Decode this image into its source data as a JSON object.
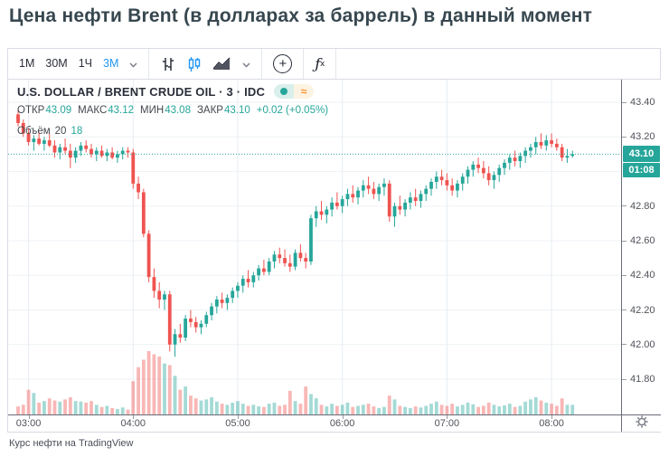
{
  "page": {
    "title": "Цена нефти Brent (в долларах за баррель) в данный момент",
    "footer": "Курс нефти на TradingView"
  },
  "toolbar": {
    "intervals": [
      {
        "label": "1М"
      },
      {
        "label": "30М"
      },
      {
        "label": "1Ч"
      },
      {
        "label": "3М"
      }
    ],
    "active_interval": "3М",
    "icons": [
      "chevron-down",
      "bars-style",
      "candles-style",
      "area-style",
      "chevron-down",
      "compare-plus",
      "indicators-fx"
    ]
  },
  "legend": {
    "symbol_title": "U.S. DOLLAR / BRENT CRUDE OIL · 3 · IDC",
    "ohlc": {
      "open_label": "ОТКР",
      "open": "43.09",
      "high_label": "МАКС",
      "high": "43.12",
      "low_label": "МИН",
      "low": "43.08",
      "close_label": "ЗАКР",
      "close": "43.10",
      "change": "+0.02 (+0.05%)"
    },
    "volume_label": "Объём",
    "volume_ma_length": "20",
    "volume_value": "18"
  },
  "price_scale": {
    "last_price": "43.10",
    "countdown": "01:08",
    "labels": [
      {
        "text": "43.40",
        "price": 43.4
      },
      {
        "text": "43.20",
        "price": 43.2
      },
      {
        "text": "42.80",
        "price": 42.8
      },
      {
        "text": "42.60",
        "price": 42.6
      },
      {
        "text": "42.40",
        "price": 42.4
      },
      {
        "text": "42.20",
        "price": 42.2
      },
      {
        "text": "42.00",
        "price": 42.0
      },
      {
        "text": "41.80",
        "price": 41.8
      }
    ]
  },
  "time_scale": {
    "labels": [
      {
        "text": "03:00",
        "index": 2
      },
      {
        "text": "04:00",
        "index": 22
      },
      {
        "text": "05:00",
        "index": 42
      },
      {
        "text": "06:00",
        "index": 62
      },
      {
        "text": "07:00",
        "index": 82
      },
      {
        "text": "08:00",
        "index": 102
      }
    ]
  },
  "colors": {
    "up": "#26a69a",
    "down": "#ef5350",
    "accent_blue": "#2196f3",
    "badge": "#26a69a",
    "grid_h": "#eef2f6",
    "grid_v": "#e6edf3",
    "axis_border": "#6a6d78",
    "delayed_orange": "#ff9332"
  },
  "chart_data": {
    "type": "candlestick",
    "title": "U.S. DOLLAR / BRENT CRUDE OIL",
    "exchange": "IDC",
    "interval_minutes": 3,
    "unit": "USD per barrel",
    "start_time": "02:54",
    "last_price": 43.1,
    "price_axis_gridlines": [
      43.4,
      43.2,
      43.0,
      42.8,
      42.6,
      42.4,
      42.2,
      42.0,
      41.8
    ],
    "visible_price_range": [
      41.6,
      43.53
    ],
    "columns": [
      "open",
      "high",
      "low",
      "close",
      "volume"
    ],
    "candles": [
      [
        43.33,
        43.36,
        43.26,
        43.28,
        15
      ],
      [
        43.28,
        43.3,
        43.2,
        43.22,
        18
      ],
      [
        43.22,
        43.25,
        43.15,
        43.17,
        46
      ],
      [
        43.17,
        43.21,
        43.12,
        43.19,
        40
      ],
      [
        43.19,
        43.23,
        43.15,
        43.16,
        22
      ],
      [
        43.16,
        43.2,
        43.12,
        43.18,
        25
      ],
      [
        43.18,
        43.22,
        43.14,
        43.15,
        30
      ],
      [
        43.15,
        43.18,
        43.08,
        43.11,
        26
      ],
      [
        43.11,
        43.16,
        43.07,
        43.14,
        24
      ],
      [
        43.14,
        43.19,
        43.1,
        43.12,
        28
      ],
      [
        43.12,
        43.16,
        43.02,
        43.08,
        32
      ],
      [
        43.08,
        43.14,
        43.05,
        43.12,
        25
      ],
      [
        43.12,
        43.17,
        43.09,
        43.15,
        24
      ],
      [
        43.15,
        43.18,
        43.11,
        43.13,
        22
      ],
      [
        43.13,
        43.16,
        43.08,
        43.1,
        25
      ],
      [
        43.1,
        43.14,
        43.06,
        43.12,
        18
      ],
      [
        43.12,
        43.15,
        43.08,
        43.09,
        14
      ],
      [
        43.09,
        43.13,
        43.06,
        43.11,
        16
      ],
      [
        43.11,
        43.14,
        43.07,
        43.08,
        12
      ],
      [
        43.08,
        43.12,
        43.05,
        43.1,
        10
      ],
      [
        43.1,
        43.14,
        43.07,
        43.12,
        13
      ],
      [
        43.12,
        43.14,
        43.08,
        43.11,
        9
      ],
      [
        43.11,
        43.13,
        42.9,
        42.93,
        62
      ],
      [
        42.93,
        42.97,
        42.84,
        42.88,
        88
      ],
      [
        42.88,
        42.9,
        42.62,
        42.64,
        102
      ],
      [
        42.64,
        42.66,
        42.36,
        42.39,
        118
      ],
      [
        42.39,
        42.44,
        42.27,
        42.31,
        112
      ],
      [
        42.31,
        42.36,
        42.21,
        42.26,
        108
      ],
      [
        42.26,
        42.31,
        42.2,
        42.29,
        95
      ],
      [
        42.29,
        42.31,
        41.96,
        42.0,
        92
      ],
      [
        42.0,
        42.09,
        41.93,
        42.06,
        72
      ],
      [
        42.06,
        42.12,
        42.01,
        42.04,
        46
      ],
      [
        42.04,
        42.17,
        42.02,
        42.15,
        52
      ],
      [
        42.15,
        42.2,
        42.1,
        42.13,
        35
      ],
      [
        42.13,
        42.16,
        42.07,
        42.1,
        30
      ],
      [
        42.1,
        42.14,
        42.06,
        42.12,
        26
      ],
      [
        42.12,
        42.19,
        42.1,
        42.17,
        28
      ],
      [
        42.17,
        42.24,
        42.14,
        42.22,
        32
      ],
      [
        42.22,
        42.28,
        42.18,
        42.26,
        24
      ],
      [
        42.26,
        42.3,
        42.21,
        42.24,
        20
      ],
      [
        42.24,
        42.29,
        42.2,
        42.27,
        18
      ],
      [
        42.27,
        42.33,
        42.24,
        42.31,
        22
      ],
      [
        42.31,
        42.36,
        42.27,
        42.34,
        25
      ],
      [
        42.34,
        42.4,
        42.3,
        42.38,
        20
      ],
      [
        42.38,
        42.43,
        42.33,
        42.36,
        16
      ],
      [
        42.36,
        42.42,
        42.33,
        42.4,
        18
      ],
      [
        42.4,
        42.46,
        42.37,
        42.44,
        15
      ],
      [
        42.44,
        42.49,
        42.4,
        42.42,
        14
      ],
      [
        42.42,
        42.5,
        42.4,
        42.48,
        20
      ],
      [
        42.48,
        42.54,
        42.44,
        42.52,
        22
      ],
      [
        42.52,
        42.56,
        42.47,
        42.5,
        16
      ],
      [
        42.5,
        42.55,
        42.45,
        42.47,
        18
      ],
      [
        42.47,
        42.52,
        42.42,
        42.45,
        44
      ],
      [
        42.45,
        42.55,
        42.43,
        42.53,
        25
      ],
      [
        42.53,
        42.58,
        42.48,
        42.5,
        20
      ],
      [
        42.5,
        42.53,
        42.44,
        42.48,
        52
      ],
      [
        42.48,
        42.75,
        42.46,
        42.73,
        38
      ],
      [
        42.73,
        42.8,
        42.68,
        42.77,
        30
      ],
      [
        42.77,
        42.83,
        42.72,
        42.75,
        18
      ],
      [
        42.75,
        42.8,
        42.7,
        42.78,
        15
      ],
      [
        42.78,
        42.85,
        42.74,
        42.82,
        20
      ],
      [
        42.82,
        42.88,
        42.78,
        42.8,
        16
      ],
      [
        42.8,
        42.86,
        42.76,
        42.84,
        18
      ],
      [
        42.84,
        42.9,
        42.8,
        42.87,
        22
      ],
      [
        42.87,
        42.92,
        42.82,
        42.85,
        14
      ],
      [
        42.85,
        42.91,
        42.81,
        42.89,
        16
      ],
      [
        42.89,
        42.95,
        42.85,
        42.92,
        18
      ],
      [
        42.92,
        42.97,
        42.87,
        42.9,
        20
      ],
      [
        42.9,
        42.94,
        42.84,
        42.87,
        15
      ],
      [
        42.87,
        42.93,
        42.83,
        42.91,
        12
      ],
      [
        42.91,
        42.96,
        42.86,
        42.93,
        14
      ],
      [
        42.93,
        42.95,
        42.71,
        42.74,
        35
      ],
      [
        42.74,
        42.82,
        42.68,
        42.8,
        28
      ],
      [
        42.8,
        42.86,
        42.75,
        42.78,
        16
      ],
      [
        42.78,
        42.84,
        42.74,
        42.82,
        14
      ],
      [
        42.82,
        42.88,
        42.78,
        42.85,
        12
      ],
      [
        42.85,
        42.9,
        42.8,
        42.83,
        15
      ],
      [
        42.83,
        42.89,
        42.79,
        42.87,
        13
      ],
      [
        42.87,
        42.92,
        42.83,
        42.9,
        16
      ],
      [
        42.9,
        42.96,
        42.86,
        42.94,
        20
      ],
      [
        42.94,
        43.0,
        42.9,
        42.97,
        24
      ],
      [
        42.97,
        43.01,
        42.92,
        42.95,
        18
      ],
      [
        42.95,
        42.99,
        42.89,
        42.92,
        16
      ],
      [
        42.92,
        42.96,
        42.86,
        42.89,
        20
      ],
      [
        42.89,
        42.95,
        42.85,
        42.93,
        15
      ],
      [
        42.93,
        42.99,
        42.89,
        42.97,
        18
      ],
      [
        42.97,
        43.03,
        42.93,
        43.01,
        22
      ],
      [
        43.01,
        43.06,
        42.97,
        43.04,
        19
      ],
      [
        43.04,
        43.08,
        42.99,
        43.02,
        14
      ],
      [
        43.02,
        43.06,
        42.96,
        42.99,
        16
      ],
      [
        42.99,
        43.03,
        42.92,
        42.95,
        22
      ],
      [
        42.95,
        43.0,
        42.9,
        42.98,
        18
      ],
      [
        42.98,
        43.04,
        42.94,
        43.02,
        15
      ],
      [
        43.02,
        43.07,
        42.98,
        43.05,
        17
      ],
      [
        43.05,
        43.1,
        43.01,
        43.08,
        20
      ],
      [
        43.08,
        43.12,
        43.03,
        43.06,
        14
      ],
      [
        43.06,
        43.11,
        43.02,
        43.09,
        16
      ],
      [
        43.09,
        43.14,
        43.05,
        43.12,
        24
      ],
      [
        43.12,
        43.16,
        43.08,
        43.14,
        28
      ],
      [
        43.14,
        43.2,
        43.1,
        43.17,
        32
      ],
      [
        43.17,
        43.22,
        43.13,
        43.15,
        26
      ],
      [
        43.15,
        43.21,
        43.12,
        43.18,
        22
      ],
      [
        43.18,
        43.22,
        43.14,
        43.16,
        20
      ],
      [
        43.16,
        43.19,
        43.12,
        43.14,
        16
      ],
      [
        43.14,
        43.16,
        43.06,
        43.08,
        30
      ],
      [
        43.08,
        43.13,
        43.05,
        43.09,
        18
      ],
      [
        43.09,
        43.12,
        43.08,
        43.1,
        18
      ]
    ]
  }
}
